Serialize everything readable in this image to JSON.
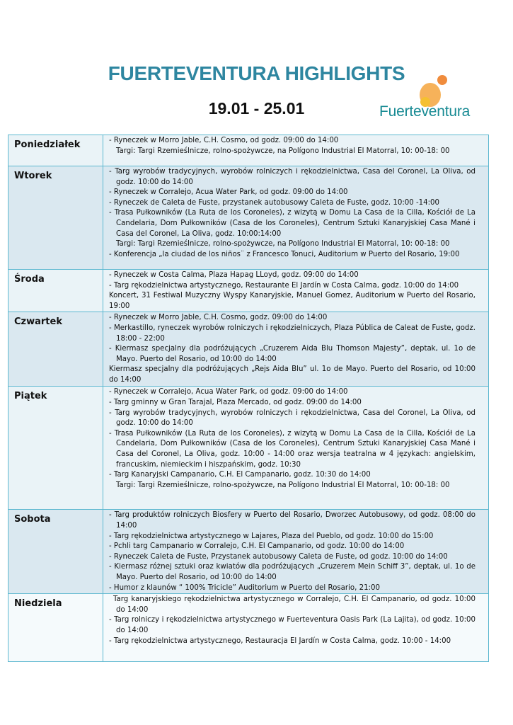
{
  "header": {
    "title": "FUERTEVENTURA HIGHLIGHTS",
    "dates": "19.01 - 25.01",
    "logo_text": "Fuerteventura"
  },
  "colors": {
    "title": "#2e86a0",
    "table_border": "#5db8d0",
    "logo_orange": "#f08c3c",
    "logo_teal": "#178a93"
  },
  "days": [
    {
      "day": "Poniedziałek",
      "shade": "light",
      "items": [
        {
          "type": "bullet",
          "text": "- Ryneczek w Morro Jable, C.H. Cosmo, od godz. 09:00 do 14:00"
        },
        {
          "type": "cont",
          "text": "Targi: Targi Rzemieślnicze, rolno-spożywcze,  na Polígono Industrial  El Matorral, 10: 00-18: 00"
        }
      ]
    },
    {
      "day": "Wtorek",
      "shade": "dark",
      "items": [
        {
          "type": "bullet",
          "text": "- Targ wyrobów tradycyjnych, wyrobów rolniczych i rękodzielnictwa, Casa del Coronel, La Oliva, od godz. 10:00 do 14:00"
        },
        {
          "type": "bullet",
          "text": "- Ryneczek w Corralejo, Acua Water Park, od godz. 09:00 do 14:00"
        },
        {
          "type": "bullet",
          "text": "- Ryneczek de Caleta de Fuste, przystanek autobusowy Caleta de Fuste, godz. 10:00 -14:00"
        },
        {
          "type": "bullet",
          "text": "- Trasa Pułkowników (La Ruta de los Coroneles), z wizytą w Domu La Casa de la Cilla, Kościół de La Candelaria, Dom Pułkowników (Casa de los Coroneles), Centrum Sztuki Kanaryjskiej Casa Mané i Casa del Coronel, La Oliva, godz. 10:00:14:00"
        },
        {
          "type": "cont",
          "text": "Targi: Targi Rzemieślnicze, rolno-spożywcze,  na Polígono Industrial  El Matorral, 10: 00-18: 00"
        },
        {
          "type": "plain",
          "text": "- Konferencja „la ciudad de los niños¨ z Francesco Tonuci,  Auditorium w Puerto del Rosario, 19:00"
        }
      ]
    },
    {
      "day": "Środa",
      "shade": "light",
      "items": [
        {
          "type": "bullet",
          "text": "- Ryneczek w Costa Calma, Plaza Hapag LLoyd, godz. 09:00 do 14:00"
        },
        {
          "type": "bullet",
          "text": "- Targ rękodzielnictwa artystycznego, Restaurante El Jardín w Costa Calma, godz. 10:00 do 14:00"
        },
        {
          "type": "plain",
          "text": "Koncert, 31 Festiwal Muzyczny Wyspy Kanaryjskie, Manuel Gomez, Auditorium w Puerto del Rosario, 19:00"
        }
      ]
    },
    {
      "day": "Czwartek",
      "shade": "dark",
      "items": [
        {
          "type": "bullet",
          "text": "- Ryneczek w Morro Jable, C.H. Cosmo, godz. 09:00 do 14:00"
        },
        {
          "type": "bullet",
          "text": "- Merkastillo, ryneczek wyrobów rolniczych i rękodzielniczych, Plaza Pública de Caleat de Fuste, godz. 18:00 - 22:00"
        },
        {
          "type": "bullet",
          "text": "- Kiermasz specjalny dla podróżujących „Cruzerem Aida Blu Thomson Majesty”, deptak, ul. 1o de Mayo. Puerto del Rosario, od 10:00 do 14:00"
        },
        {
          "type": "plain",
          "text": "Kiermasz specjalny dla podróżujących „Rejs Aida Blu” ul. 1o de Mayo. Puerto del Rosario, od 10:00 do 14:00"
        }
      ]
    },
    {
      "day": "Piątek",
      "shade": "light",
      "items": [
        {
          "type": "bullet",
          "text": "- Ryneczek w Corralejo, Acua Water Park, od godz. 09:00 do 14:00"
        },
        {
          "type": "bullet",
          "text": "- Targ gminny w Gran Tarajal, Plaza Mercado, od godz. 09:00 do 14:00"
        },
        {
          "type": "bullet",
          "text": "- Targ wyrobów tradycyjnych, wyrobów rolniczych i rękodzielnictwa, Casa del Coronel, La Oliva, od godz. 10:00 do 14:00"
        },
        {
          "type": "bullet",
          "text": "- Trasa Pułkowników (La Ruta de los Coroneles), z wizytą w Domu La Casa de la Cilla, Kościół de La Candelaria, Dom Pułkowników (Casa de los Coroneles), Centrum Sztuki Kanaryjskiej Casa Mané i Casa del Coronel, La Oliva, godz. 10:00 - 14:00 oraz wersja teatralna w 4 językach: angielskim, francuskim, niemieckim i hiszpańskim, godz. 10:30"
        },
        {
          "type": "bullet",
          "text": "- Targ Kanaryjski Campanario, C.H. El Campanario, godz. 10:30 do 14:00"
        },
        {
          "type": "cont",
          "text": "Targi: Targi Rzemieślnicze, rolno-spożywcze,  na Polígono Industrial  El Matorral, 10: 00-18: 00"
        }
      ]
    },
    {
      "day": "Sobota",
      "shade": "dark",
      "items": [
        {
          "type": "bullet",
          "text": "- Targ produktów rolniczych Biosfery w Puerto del Rosario, Dworzec Autobusowy, od godz. 08:00 do 14:00"
        },
        {
          "type": "bullet",
          "text": "- Targ rękodzielnictwa artystycznego w Lajares, Plaza del Pueblo, od godz. 10:00 do 15:00"
        },
        {
          "type": "bullet",
          "text": "- Pchli targ Campanario w Corralejo, C.H. El Campanario, od godz. 10:00 do 14:00"
        },
        {
          "type": "bullet",
          "text": "- Ryneczek Caleta de Fuste, Przystanek autobusowy Caleta de Fuste, od godz. 10:00 do 14:00"
        },
        {
          "type": "bullet",
          "text": "- Kiermasz różnej sztuki oraz kwiatów dla podróżujących „Cruzerem Mein Schiff 3”, deptak, ul. 1o de Mayo. Puerto del Rosario, od 10:00 do 14:00"
        },
        {
          "type": "bullet",
          "text": "- Humor z klaunów “ 100% Tricicle”  Auditorium w Puerto del Rosario, 21:00"
        }
      ]
    },
    {
      "day": "Niedziela",
      "shade": "white",
      "items": [
        {
          "type": "indent1",
          "text": "Targ kanaryjskiego rękodzielnictwa artystycznego w Corralejo, C.H. El Campanario, od godz. 10:00 do 14:00"
        },
        {
          "type": "bullet",
          "text": "- Targ rolniczy i rękodzielnictwa artystycznego w Fuerteventura Oasis Park (La Lajita), od godz. 10:00 do 14:00"
        },
        {
          "type": "bullet",
          "text": "- Targ rękodzielnictwa artystycznego, Restauracja El Jardín w Costa Calma, godz. 10:00 - 14:00"
        }
      ]
    }
  ]
}
